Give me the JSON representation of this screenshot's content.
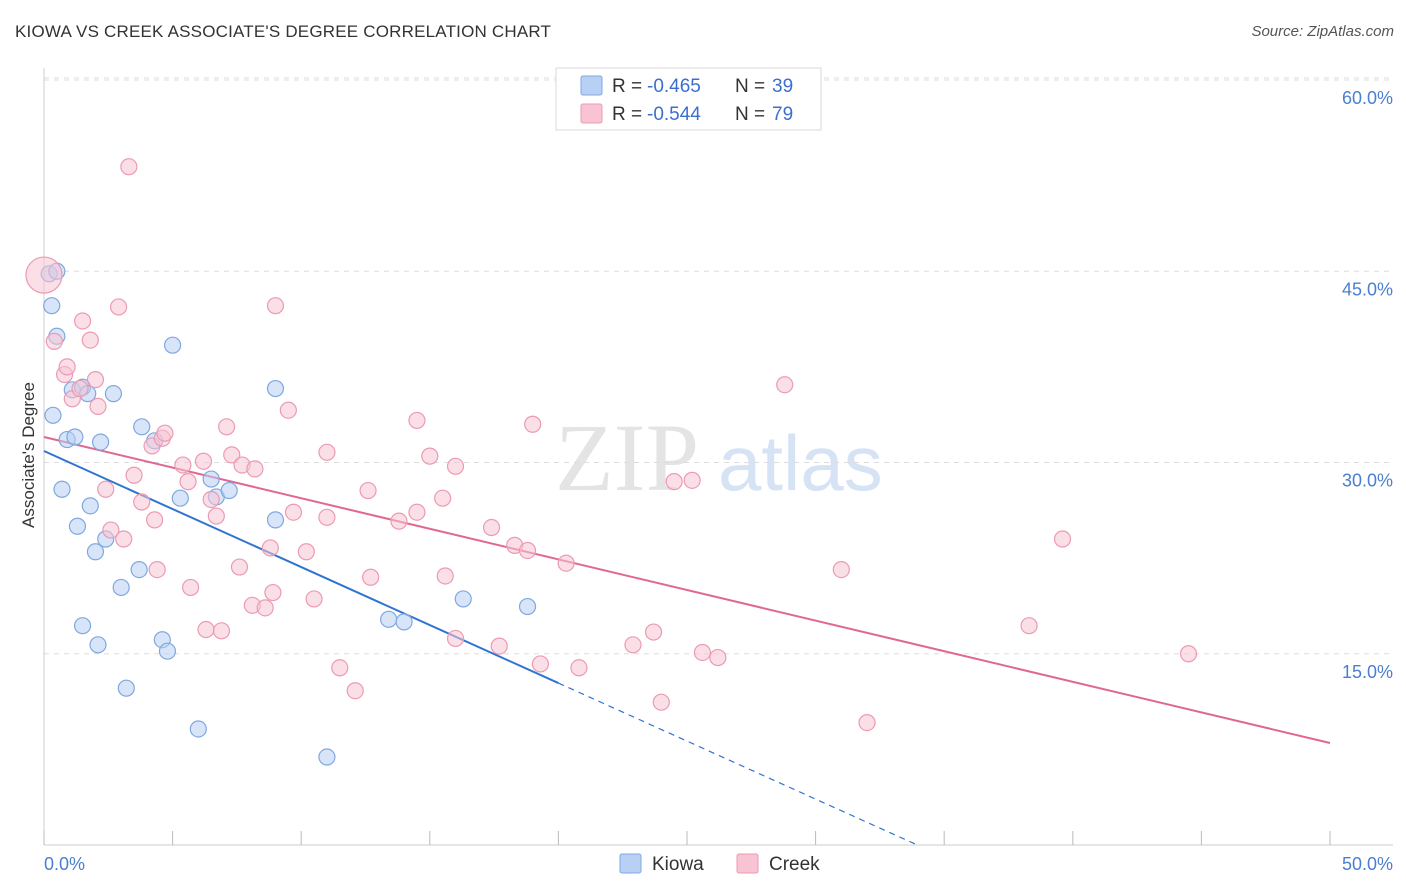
{
  "title": "KIOWA VS CREEK ASSOCIATE'S DEGREE CORRELATION CHART",
  "source": "Source: ZipAtlas.com",
  "watermark": {
    "part1": "ZIP",
    "part2": "atlas"
  },
  "legend": {
    "series": [
      {
        "r_label": "R =",
        "r_value": "-0.465",
        "n_label": "N =",
        "n_value": "39"
      },
      {
        "r_label": "R =",
        "r_value": "-0.544",
        "n_label": "N =",
        "n_value": "79"
      }
    ]
  },
  "bottom_legend": [
    "Kiowa",
    "Creek"
  ],
  "colors": {
    "kiowa_fill": "#b8d0f4",
    "kiowa_stroke": "#7fa8e0",
    "kiowa_line": "#2f74d0",
    "creek_fill": "#f8c4d4",
    "creek_stroke": "#ec9ab4",
    "creek_line": "#e06890",
    "grid": "#dddddd",
    "axis_text": "#4a7fd0"
  },
  "chart_data": {
    "type": "scatter",
    "title": "KIOWA VS CREEK ASSOCIATE'S DEGREE CORRELATION CHART",
    "xlabel": "",
    "ylabel": "Associate's Degree",
    "xlim": [
      0,
      50
    ],
    "ylim": [
      0,
      62
    ],
    "x_tick_labels": [
      "0.0%",
      "50.0%"
    ],
    "y_ticks": [
      15,
      30,
      45,
      60
    ],
    "y_tick_labels": [
      "15.0%",
      "30.0%",
      "45.0%",
      "60.0%"
    ],
    "grid": true,
    "series": [
      {
        "name": "Kiowa",
        "r": -0.465,
        "n": 39,
        "trend": {
          "x0": 0,
          "y0": 30.9,
          "x1": 20,
          "y1": 12.7,
          "dash_to_x": 50
        },
        "points": [
          [
            0.2,
            44.8
          ],
          [
            0.3,
            42.3
          ],
          [
            0.5,
            39.9
          ],
          [
            0.35,
            33.7
          ],
          [
            0.7,
            27.9
          ],
          [
            1.1,
            35.7
          ],
          [
            1.5,
            35.9
          ],
          [
            1.7,
            35.4
          ],
          [
            2.7,
            35.4
          ],
          [
            0.9,
            31.8
          ],
          [
            1.2,
            32.0
          ],
          [
            2.2,
            31.6
          ],
          [
            3.8,
            32.8
          ],
          [
            4.3,
            31.7
          ],
          [
            5.0,
            39.2
          ],
          [
            9.0,
            35.8
          ],
          [
            1.3,
            25.0
          ],
          [
            1.8,
            26.6
          ],
          [
            2.0,
            23.0
          ],
          [
            2.4,
            24.0
          ],
          [
            3.0,
            20.2
          ],
          [
            3.7,
            21.6
          ],
          [
            5.3,
            27.2
          ],
          [
            6.5,
            28.7
          ],
          [
            6.7,
            27.3
          ],
          [
            7.2,
            27.8
          ],
          [
            9.0,
            25.5
          ],
          [
            1.5,
            17.2
          ],
          [
            2.1,
            15.7
          ],
          [
            4.6,
            16.1
          ],
          [
            4.8,
            15.2
          ],
          [
            3.2,
            12.3
          ],
          [
            6.0,
            9.1
          ],
          [
            11.0,
            6.9
          ],
          [
            13.4,
            17.7
          ],
          [
            14.0,
            17.5
          ],
          [
            16.3,
            19.3
          ],
          [
            18.8,
            18.7
          ],
          [
            0.5,
            45.0
          ]
        ]
      },
      {
        "name": "Creek",
        "r": -0.544,
        "n": 79,
        "trend": {
          "x0": 0,
          "y0": 32.0,
          "x1": 50,
          "y1": 8.0
        },
        "points": [
          [
            0.0,
            44.7
          ],
          [
            3.3,
            53.2
          ],
          [
            0.4,
            39.5
          ],
          [
            1.5,
            41.1
          ],
          [
            1.8,
            39.6
          ],
          [
            2.9,
            42.2
          ],
          [
            9.0,
            42.3
          ],
          [
            0.8,
            36.9
          ],
          [
            0.9,
            37.5
          ],
          [
            1.1,
            35.0
          ],
          [
            1.4,
            35.8
          ],
          [
            2.0,
            36.5
          ],
          [
            2.1,
            34.4
          ],
          [
            4.2,
            31.3
          ],
          [
            4.6,
            31.9
          ],
          [
            4.7,
            32.3
          ],
          [
            7.1,
            32.8
          ],
          [
            9.5,
            34.1
          ],
          [
            14.5,
            33.3
          ],
          [
            19.0,
            33.0
          ],
          [
            28.8,
            36.1
          ],
          [
            3.5,
            29.0
          ],
          [
            3.8,
            26.9
          ],
          [
            4.3,
            25.5
          ],
          [
            5.4,
            29.8
          ],
          [
            5.6,
            28.5
          ],
          [
            6.2,
            30.1
          ],
          [
            6.5,
            27.1
          ],
          [
            6.7,
            25.8
          ],
          [
            7.3,
            30.6
          ],
          [
            7.7,
            29.8
          ],
          [
            8.2,
            29.5
          ],
          [
            11.0,
            30.8
          ],
          [
            12.6,
            27.8
          ],
          [
            13.8,
            25.4
          ],
          [
            14.5,
            26.1
          ],
          [
            15.0,
            30.5
          ],
          [
            15.5,
            27.2
          ],
          [
            16.0,
            29.7
          ],
          [
            17.4,
            24.9
          ],
          [
            18.3,
            23.5
          ],
          [
            18.8,
            23.1
          ],
          [
            24.5,
            28.5
          ],
          [
            2.4,
            27.9
          ],
          [
            2.6,
            24.7
          ],
          [
            3.1,
            24.0
          ],
          [
            4.4,
            21.6
          ],
          [
            5.7,
            20.2
          ],
          [
            6.3,
            16.9
          ],
          [
            6.9,
            16.8
          ],
          [
            7.6,
            21.8
          ],
          [
            8.1,
            18.8
          ],
          [
            8.6,
            18.6
          ],
          [
            8.8,
            23.3
          ],
          [
            8.9,
            19.8
          ],
          [
            9.7,
            26.1
          ],
          [
            10.2,
            23.0
          ],
          [
            10.5,
            19.3
          ],
          [
            11.0,
            25.7
          ],
          [
            12.7,
            21.0
          ],
          [
            15.6,
            21.1
          ],
          [
            16.0,
            16.2
          ],
          [
            17.7,
            15.6
          ],
          [
            19.3,
            14.2
          ],
          [
            20.3,
            22.1
          ],
          [
            20.8,
            13.9
          ],
          [
            22.9,
            15.7
          ],
          [
            23.7,
            16.7
          ],
          [
            25.6,
            15.1
          ],
          [
            26.2,
            14.7
          ],
          [
            24.0,
            11.2
          ],
          [
            11.5,
            13.9
          ],
          [
            12.1,
            12.1
          ],
          [
            31.0,
            21.6
          ],
          [
            32.0,
            9.6
          ],
          [
            39.6,
            24.0
          ],
          [
            38.3,
            17.2
          ],
          [
            44.5,
            15.0
          ],
          [
            25.2,
            28.6
          ]
        ]
      }
    ]
  }
}
